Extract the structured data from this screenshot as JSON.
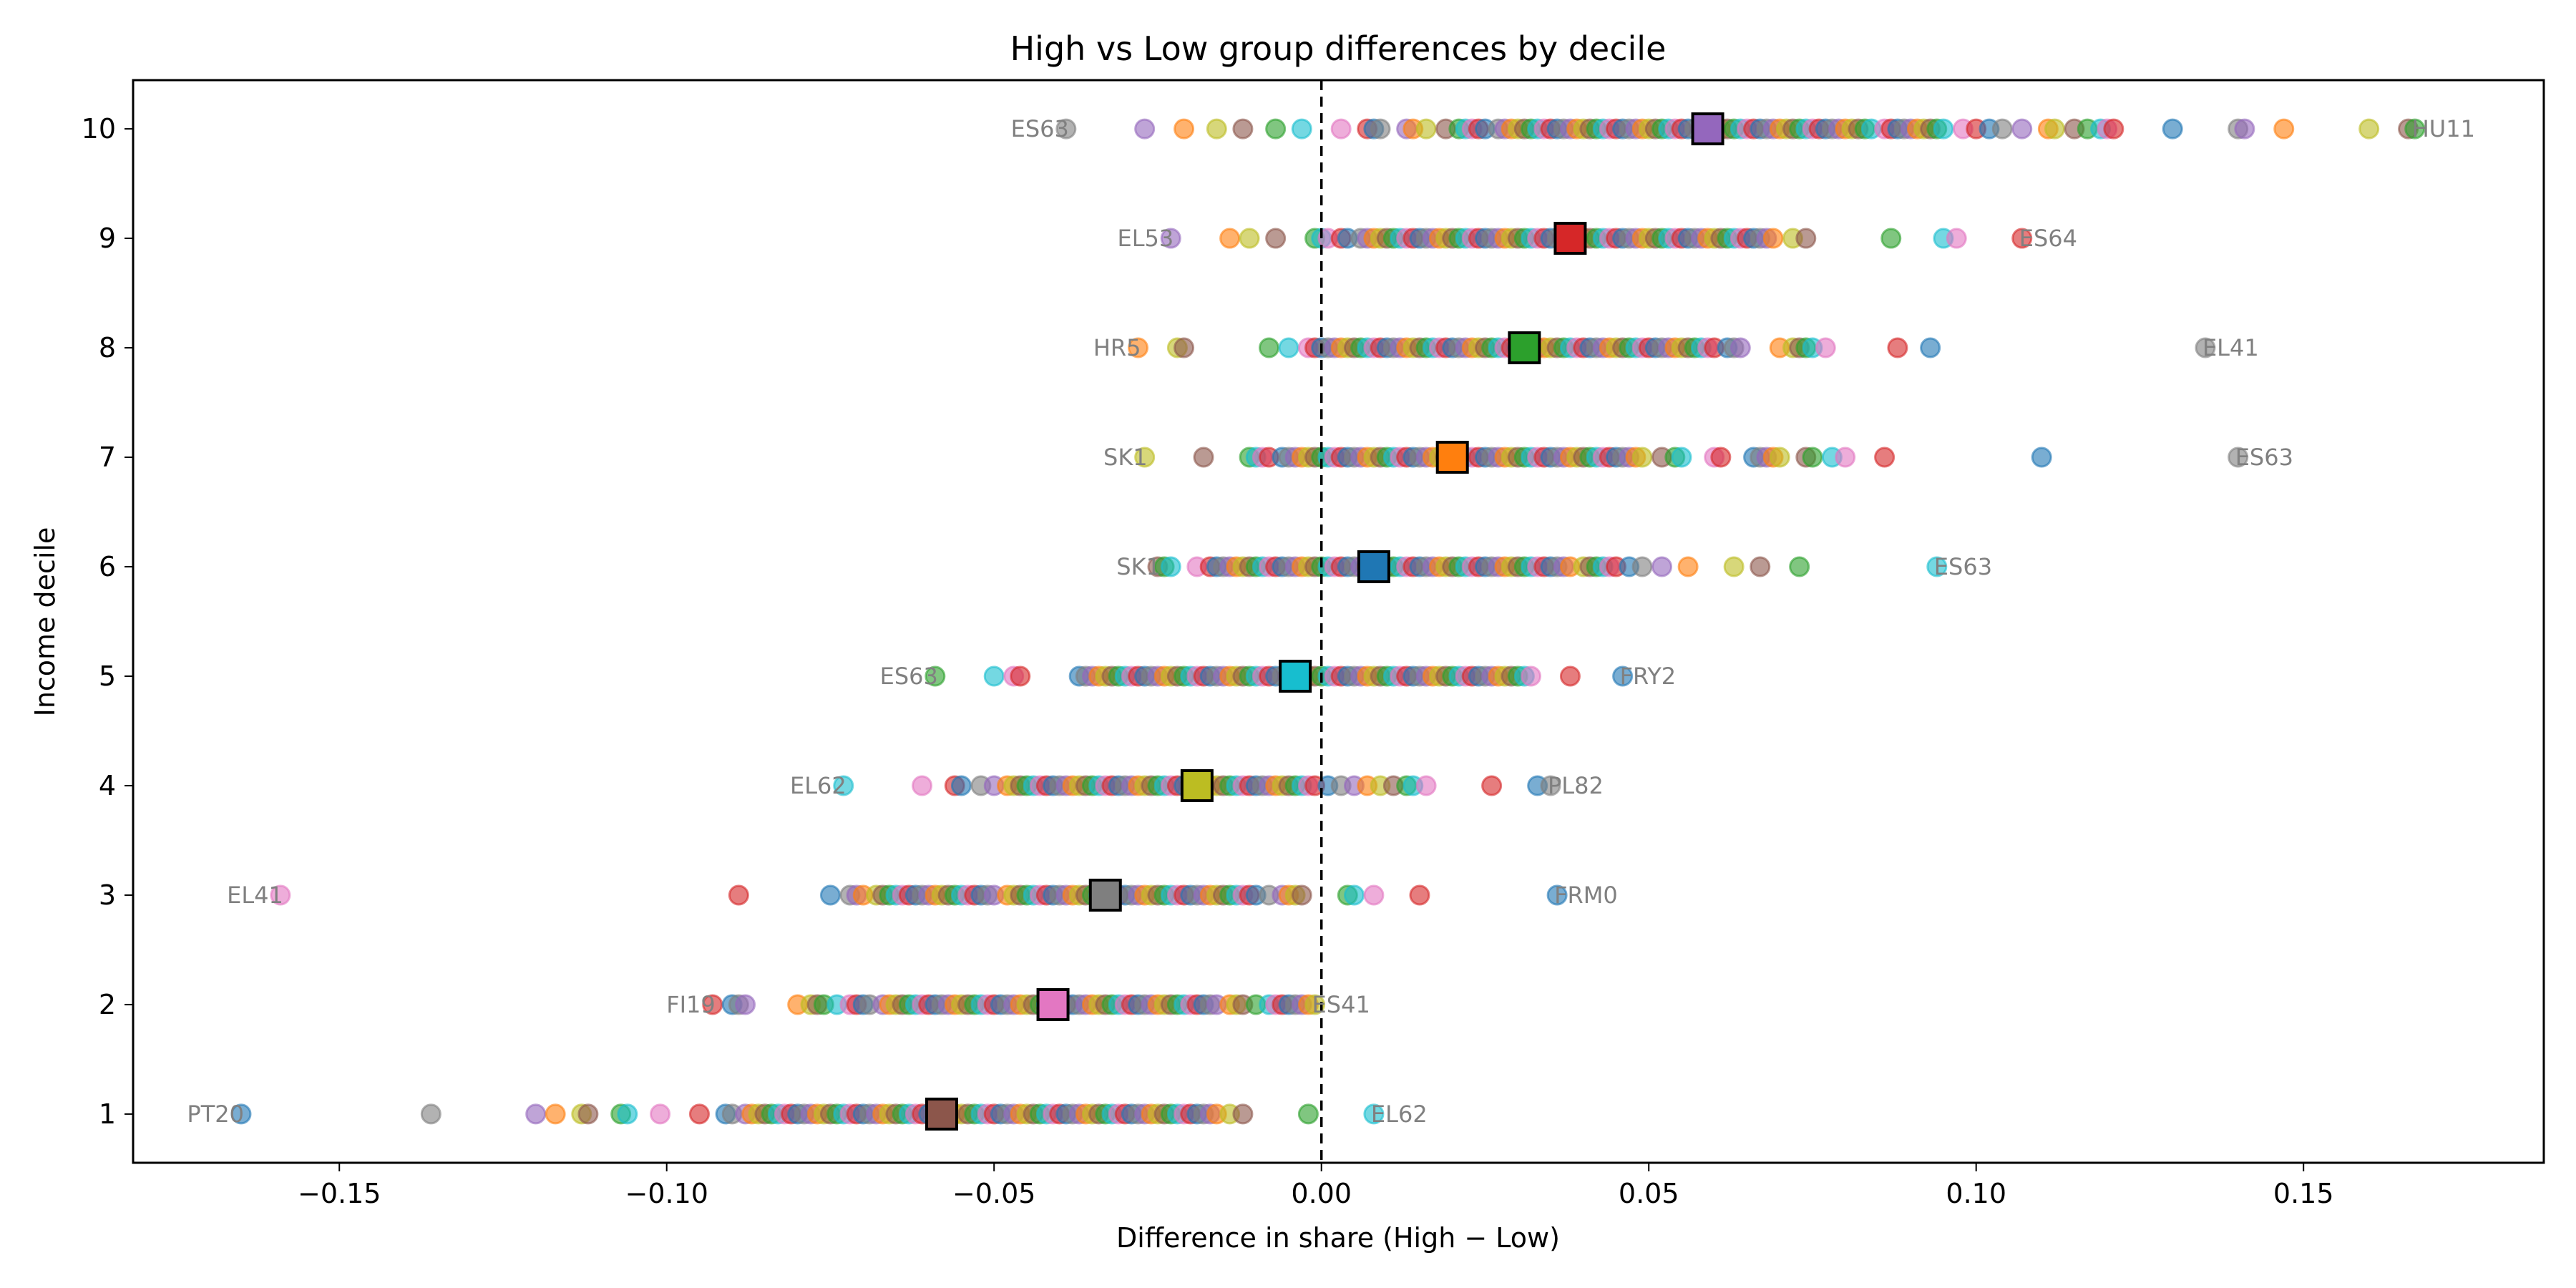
{
  "chart_data": {
    "type": "scatter",
    "title": "High vs Low group differences by decile",
    "xlabel": "Difference in share (High − Low)",
    "ylabel": "Income decile",
    "xlim": [
      -0.1815,
      0.1867
    ],
    "ylim": [
      0.555,
      10.445
    ],
    "xticks": [
      -0.15,
      -0.1,
      -0.05,
      0.0,
      0.05,
      0.1,
      0.15
    ],
    "xtick_labels": [
      "−0.15",
      "−0.10",
      "−0.05",
      "0.00",
      "0.05",
      "0.10",
      "0.15"
    ],
    "yticks": [
      1,
      2,
      3,
      4,
      5,
      6,
      7,
      8,
      9,
      10
    ],
    "ytick_labels": [
      "1",
      "2",
      "3",
      "4",
      "5",
      "6",
      "7",
      "8",
      "9",
      "10"
    ],
    "reference_line": {
      "x": 0,
      "style": "dashed",
      "color": "#000000"
    },
    "grid": false,
    "legend": "none",
    "palette": [
      "#1f77b4",
      "#ff7f0e",
      "#2ca02c",
      "#d62728",
      "#9467bd",
      "#8c564b",
      "#e377c2",
      "#7f7f7f",
      "#bcbd22",
      "#17becf"
    ],
    "point_alpha": 0.6,
    "deciles": [
      {
        "decile": 1,
        "mean": -0.058,
        "mean_color": "#8c564b",
        "min_label": "PT20",
        "max_label": "EL62",
        "points": [
          -0.165,
          -0.136,
          -0.12,
          -0.117,
          -0.113,
          -0.112,
          -0.107,
          -0.106,
          -0.101,
          -0.095,
          -0.091,
          -0.09,
          -0.088,
          -0.087,
          -0.086,
          -0.085,
          -0.084,
          -0.083,
          -0.082,
          -0.081,
          -0.08,
          -0.079,
          -0.078,
          -0.077,
          -0.076,
          -0.075,
          -0.074,
          -0.073,
          -0.072,
          -0.071,
          -0.07,
          -0.069,
          -0.068,
          -0.067,
          -0.066,
          -0.065,
          -0.064,
          -0.063,
          -0.062,
          -0.061,
          -0.06,
          -0.059,
          -0.057,
          -0.056,
          -0.055,
          -0.054,
          -0.053,
          -0.052,
          -0.051,
          -0.05,
          -0.049,
          -0.048,
          -0.047,
          -0.046,
          -0.045,
          -0.044,
          -0.043,
          -0.042,
          -0.041,
          -0.04,
          -0.039,
          -0.038,
          -0.037,
          -0.036,
          -0.035,
          -0.034,
          -0.033,
          -0.032,
          -0.031,
          -0.03,
          -0.029,
          -0.028,
          -0.027,
          -0.026,
          -0.025,
          -0.024,
          -0.023,
          -0.022,
          -0.021,
          -0.02,
          -0.019,
          -0.018,
          -0.017,
          -0.016,
          -0.014,
          -0.012,
          -0.002,
          0.008
        ]
      },
      {
        "decile": 2,
        "mean": -0.041,
        "mean_color": "#e377c2",
        "min_label": "FI19",
        "max_label": "ES41",
        "points": [
          -0.093,
          -0.09,
          -0.089,
          -0.088,
          -0.08,
          -0.078,
          -0.077,
          -0.076,
          -0.074,
          -0.072,
          -0.071,
          -0.07,
          -0.069,
          -0.067,
          -0.066,
          -0.065,
          -0.064,
          -0.063,
          -0.062,
          -0.061,
          -0.06,
          -0.059,
          -0.058,
          -0.057,
          -0.056,
          -0.055,
          -0.054,
          -0.053,
          -0.052,
          -0.051,
          -0.05,
          -0.049,
          -0.048,
          -0.047,
          -0.046,
          -0.045,
          -0.044,
          -0.043,
          -0.042,
          -0.04,
          -0.039,
          -0.038,
          -0.037,
          -0.036,
          -0.035,
          -0.034,
          -0.033,
          -0.032,
          -0.031,
          -0.03,
          -0.029,
          -0.028,
          -0.027,
          -0.026,
          -0.025,
          -0.024,
          -0.023,
          -0.022,
          -0.021,
          -0.02,
          -0.019,
          -0.018,
          -0.017,
          -0.016,
          -0.014,
          -0.013,
          -0.012,
          -0.01,
          -0.008,
          -0.007,
          -0.006,
          -0.005,
          -0.004,
          -0.003,
          -0.002,
          -0.001
        ]
      },
      {
        "decile": 3,
        "mean": -0.033,
        "mean_color": "#7f7f7f",
        "min_label": "EL41",
        "max_label": "FRM0",
        "points": [
          -0.159,
          -0.089,
          -0.075,
          -0.072,
          -0.071,
          -0.07,
          -0.068,
          -0.067,
          -0.066,
          -0.065,
          -0.064,
          -0.063,
          -0.062,
          -0.061,
          -0.06,
          -0.059,
          -0.058,
          -0.057,
          -0.056,
          -0.055,
          -0.054,
          -0.053,
          -0.052,
          -0.051,
          -0.05,
          -0.048,
          -0.047,
          -0.046,
          -0.045,
          -0.044,
          -0.043,
          -0.042,
          -0.041,
          -0.04,
          -0.039,
          -0.038,
          -0.037,
          -0.036,
          -0.035,
          -0.034,
          -0.032,
          -0.031,
          -0.03,
          -0.029,
          -0.028,
          -0.027,
          -0.026,
          -0.025,
          -0.024,
          -0.023,
          -0.022,
          -0.021,
          -0.02,
          -0.019,
          -0.018,
          -0.017,
          -0.016,
          -0.015,
          -0.014,
          -0.013,
          -0.012,
          -0.011,
          -0.01,
          -0.008,
          -0.006,
          -0.005,
          -0.004,
          -0.003,
          0.004,
          0.005,
          0.008,
          0.015,
          0.036
        ]
      },
      {
        "decile": 4,
        "mean": -0.019,
        "mean_color": "#bcbd22",
        "min_label": "EL62",
        "max_label": "PL82",
        "points": [
          -0.073,
          -0.061,
          -0.056,
          -0.055,
          -0.052,
          -0.05,
          -0.048,
          -0.047,
          -0.046,
          -0.045,
          -0.044,
          -0.043,
          -0.042,
          -0.041,
          -0.04,
          -0.039,
          -0.038,
          -0.037,
          -0.036,
          -0.035,
          -0.034,
          -0.033,
          -0.032,
          -0.031,
          -0.03,
          -0.029,
          -0.028,
          -0.027,
          -0.026,
          -0.025,
          -0.024,
          -0.023,
          -0.022,
          -0.021,
          -0.02,
          -0.018,
          -0.017,
          -0.016,
          -0.015,
          -0.014,
          -0.013,
          -0.012,
          -0.011,
          -0.01,
          -0.009,
          -0.008,
          -0.007,
          -0.006,
          -0.005,
          -0.004,
          -0.003,
          -0.002,
          -0.001,
          0.001,
          0.003,
          0.005,
          0.007,
          0.009,
          0.011,
          0.013,
          0.014,
          0.016,
          0.026,
          0.033,
          0.035
        ]
      },
      {
        "decile": 5,
        "mean": -0.004,
        "mean_color": "#17becf",
        "min_label": "ES63",
        "max_label": "FRY2",
        "points": [
          -0.059,
          -0.05,
          -0.047,
          -0.046,
          -0.037,
          -0.036,
          -0.035,
          -0.034,
          -0.033,
          -0.032,
          -0.031,
          -0.03,
          -0.029,
          -0.028,
          -0.027,
          -0.026,
          -0.025,
          -0.024,
          -0.023,
          -0.022,
          -0.021,
          -0.02,
          -0.019,
          -0.018,
          -0.017,
          -0.016,
          -0.015,
          -0.014,
          -0.013,
          -0.012,
          -0.011,
          -0.01,
          -0.009,
          -0.008,
          -0.007,
          -0.006,
          -0.005,
          -0.003,
          -0.002,
          -0.001,
          0.0,
          0.001,
          0.002,
          0.003,
          0.004,
          0.005,
          0.006,
          0.007,
          0.008,
          0.009,
          0.01,
          0.011,
          0.012,
          0.013,
          0.014,
          0.015,
          0.016,
          0.017,
          0.018,
          0.019,
          0.02,
          0.021,
          0.022,
          0.023,
          0.024,
          0.025,
          0.026,
          0.027,
          0.028,
          0.029,
          0.03,
          0.031,
          0.032,
          0.038,
          0.046
        ]
      },
      {
        "decile": 6,
        "mean": 0.008,
        "mean_color": "#1f77b4",
        "min_label": "SK1",
        "max_label": "ES63",
        "points": [
          -0.025,
          -0.024,
          -0.023,
          -0.019,
          -0.017,
          -0.016,
          -0.015,
          -0.014,
          -0.013,
          -0.012,
          -0.011,
          -0.01,
          -0.009,
          -0.008,
          -0.007,
          -0.006,
          -0.005,
          -0.004,
          -0.003,
          -0.002,
          -0.001,
          0.0,
          0.001,
          0.002,
          0.003,
          0.004,
          0.005,
          0.006,
          0.007,
          0.009,
          0.01,
          0.011,
          0.012,
          0.013,
          0.014,
          0.015,
          0.016,
          0.017,
          0.018,
          0.019,
          0.02,
          0.021,
          0.022,
          0.023,
          0.024,
          0.025,
          0.026,
          0.027,
          0.028,
          0.029,
          0.03,
          0.031,
          0.032,
          0.033,
          0.034,
          0.035,
          0.036,
          0.037,
          0.038,
          0.04,
          0.041,
          0.042,
          0.043,
          0.044,
          0.045,
          0.047,
          0.049,
          0.052,
          0.056,
          0.063,
          0.067,
          0.073,
          0.094
        ]
      },
      {
        "decile": 7,
        "mean": 0.02,
        "mean_color": "#ff7f0e",
        "min_label": "SK1",
        "max_label": "ES63",
        "points": [
          -0.027,
          -0.018,
          -0.011,
          -0.01,
          -0.009,
          -0.008,
          -0.006,
          -0.005,
          -0.004,
          -0.003,
          -0.002,
          -0.001,
          0.0,
          0.001,
          0.002,
          0.003,
          0.004,
          0.005,
          0.006,
          0.007,
          0.008,
          0.009,
          0.01,
          0.011,
          0.012,
          0.013,
          0.014,
          0.015,
          0.016,
          0.017,
          0.018,
          0.019,
          0.021,
          0.022,
          0.023,
          0.024,
          0.025,
          0.026,
          0.027,
          0.028,
          0.029,
          0.03,
          0.031,
          0.032,
          0.033,
          0.034,
          0.035,
          0.036,
          0.037,
          0.038,
          0.039,
          0.04,
          0.041,
          0.042,
          0.043,
          0.044,
          0.045,
          0.046,
          0.047,
          0.048,
          0.049,
          0.052,
          0.054,
          0.055,
          0.06,
          0.061,
          0.066,
          0.067,
          0.068,
          0.069,
          0.07,
          0.074,
          0.075,
          0.078,
          0.08,
          0.086,
          0.11,
          0.14
        ]
      },
      {
        "decile": 8,
        "mean": 0.031,
        "mean_color": "#2ca02c",
        "min_label": "HR5",
        "max_label": "EL41",
        "points": [
          -0.028,
          -0.022,
          -0.021,
          -0.008,
          -0.005,
          -0.002,
          -0.001,
          0.0,
          0.001,
          0.002,
          0.003,
          0.004,
          0.005,
          0.006,
          0.007,
          0.008,
          0.009,
          0.01,
          0.011,
          0.012,
          0.013,
          0.014,
          0.015,
          0.016,
          0.017,
          0.018,
          0.019,
          0.02,
          0.021,
          0.022,
          0.023,
          0.024,
          0.025,
          0.026,
          0.027,
          0.028,
          0.029,
          0.03,
          0.032,
          0.033,
          0.034,
          0.035,
          0.036,
          0.037,
          0.038,
          0.039,
          0.04,
          0.041,
          0.042,
          0.043,
          0.044,
          0.045,
          0.046,
          0.047,
          0.048,
          0.049,
          0.05,
          0.051,
          0.052,
          0.053,
          0.054,
          0.055,
          0.056,
          0.057,
          0.058,
          0.059,
          0.06,
          0.062,
          0.063,
          0.064,
          0.07,
          0.072,
          0.073,
          0.074,
          0.075,
          0.077,
          0.088,
          0.093,
          0.135
        ]
      },
      {
        "decile": 9,
        "mean": 0.038,
        "mean_color": "#d62728",
        "min_label": "EL53",
        "max_label": "ES64",
        "points": [
          -0.023,
          -0.014,
          -0.011,
          -0.007,
          -0.001,
          0.0,
          0.001,
          0.003,
          0.004,
          0.006,
          0.007,
          0.008,
          0.009,
          0.01,
          0.011,
          0.012,
          0.013,
          0.014,
          0.015,
          0.016,
          0.017,
          0.018,
          0.019,
          0.02,
          0.021,
          0.022,
          0.023,
          0.024,
          0.025,
          0.026,
          0.027,
          0.028,
          0.029,
          0.03,
          0.031,
          0.032,
          0.033,
          0.034,
          0.035,
          0.036,
          0.037,
          0.039,
          0.04,
          0.041,
          0.042,
          0.043,
          0.044,
          0.045,
          0.046,
          0.047,
          0.048,
          0.049,
          0.05,
          0.051,
          0.052,
          0.053,
          0.054,
          0.055,
          0.056,
          0.057,
          0.058,
          0.059,
          0.06,
          0.061,
          0.062,
          0.063,
          0.064,
          0.065,
          0.066,
          0.067,
          0.068,
          0.069,
          0.072,
          0.074,
          0.087,
          0.095,
          0.097,
          0.107
        ]
      },
      {
        "decile": 10,
        "mean": 0.059,
        "mean_color": "#9467bd",
        "min_label": "ES63",
        "max_label": "HU11",
        "points": [
          -0.039,
          -0.027,
          -0.021,
          -0.016,
          -0.012,
          -0.007,
          -0.003,
          0.003,
          0.007,
          0.008,
          0.009,
          0.013,
          0.014,
          0.016,
          0.019,
          0.021,
          0.022,
          0.023,
          0.024,
          0.025,
          0.027,
          0.028,
          0.029,
          0.03,
          0.031,
          0.032,
          0.033,
          0.034,
          0.035,
          0.036,
          0.037,
          0.038,
          0.039,
          0.04,
          0.041,
          0.042,
          0.043,
          0.044,
          0.045,
          0.046,
          0.047,
          0.048,
          0.049,
          0.05,
          0.051,
          0.052,
          0.053,
          0.054,
          0.055,
          0.056,
          0.057,
          0.058,
          0.06,
          0.061,
          0.062,
          0.063,
          0.064,
          0.065,
          0.066,
          0.067,
          0.068,
          0.069,
          0.07,
          0.071,
          0.072,
          0.073,
          0.074,
          0.075,
          0.076,
          0.077,
          0.078,
          0.079,
          0.08,
          0.081,
          0.082,
          0.083,
          0.084,
          0.086,
          0.087,
          0.088,
          0.089,
          0.09,
          0.091,
          0.092,
          0.093,
          0.094,
          0.095,
          0.098,
          0.1,
          0.102,
          0.104,
          0.107,
          0.111,
          0.112,
          0.115,
          0.117,
          0.119,
          0.12,
          0.121,
          0.13,
          0.14,
          0.141,
          0.147,
          0.16,
          0.166,
          0.167
        ]
      }
    ]
  }
}
